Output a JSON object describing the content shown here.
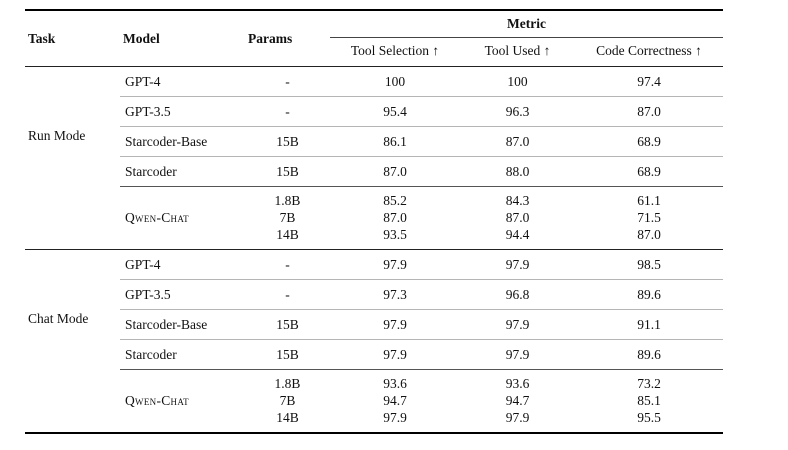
{
  "table": {
    "colors": {
      "rule_heavy": "#000000",
      "rule_medium": "#222222",
      "rule_light": "#b5b5b5",
      "rule_group": "#555555",
      "text": "#111111",
      "background": "#ffffff"
    },
    "header": {
      "task": "Task",
      "model": "Model",
      "params": "Params",
      "metric_group": "Metric",
      "metric_cols": [
        "Tool Selection ↑",
        "Tool Used ↑",
        "Code Correctness ↑"
      ]
    },
    "sections": [
      {
        "task": "Run Mode",
        "rows": [
          {
            "model": "GPT-4",
            "params": "-",
            "values": [
              "100",
              "100",
              "97.4"
            ]
          },
          {
            "model": "GPT-3.5",
            "params": "-",
            "values": [
              "95.4",
              "96.3",
              "87.0"
            ]
          },
          {
            "model": "Starcoder-Base",
            "params": "15B",
            "values": [
              "86.1",
              "87.0",
              "68.9"
            ]
          },
          {
            "model": "Starcoder",
            "params": "15B",
            "values": [
              "87.0",
              "88.0",
              "68.9"
            ]
          },
          {
            "model": "Qwen-Chat",
            "params_list": [
              "1.8B",
              "7B",
              "14B"
            ],
            "values_list": [
              [
                "85.2",
                "84.3",
                "61.1"
              ],
              [
                "87.0",
                "87.0",
                "71.5"
              ],
              [
                "93.5",
                "94.4",
                "87.0"
              ]
            ]
          }
        ]
      },
      {
        "task": "Chat Mode",
        "rows": [
          {
            "model": "GPT-4",
            "params": "-",
            "values": [
              "97.9",
              "97.9",
              "98.5"
            ]
          },
          {
            "model": "GPT-3.5",
            "params": "-",
            "values": [
              "97.3",
              "96.8",
              "89.6"
            ]
          },
          {
            "model": "Starcoder-Base",
            "params": "15B",
            "values": [
              "97.9",
              "97.9",
              "91.1"
            ]
          },
          {
            "model": "Starcoder",
            "params": "15B",
            "values": [
              "97.9",
              "97.9",
              "89.6"
            ]
          },
          {
            "model": "Qwen-Chat",
            "params_list": [
              "1.8B",
              "7B",
              "14B"
            ],
            "values_list": [
              [
                "93.6",
                "93.6",
                "73.2"
              ],
              [
                "94.7",
                "94.7",
                "85.1"
              ],
              [
                "97.9",
                "97.9",
                "95.5"
              ]
            ]
          }
        ]
      }
    ]
  }
}
